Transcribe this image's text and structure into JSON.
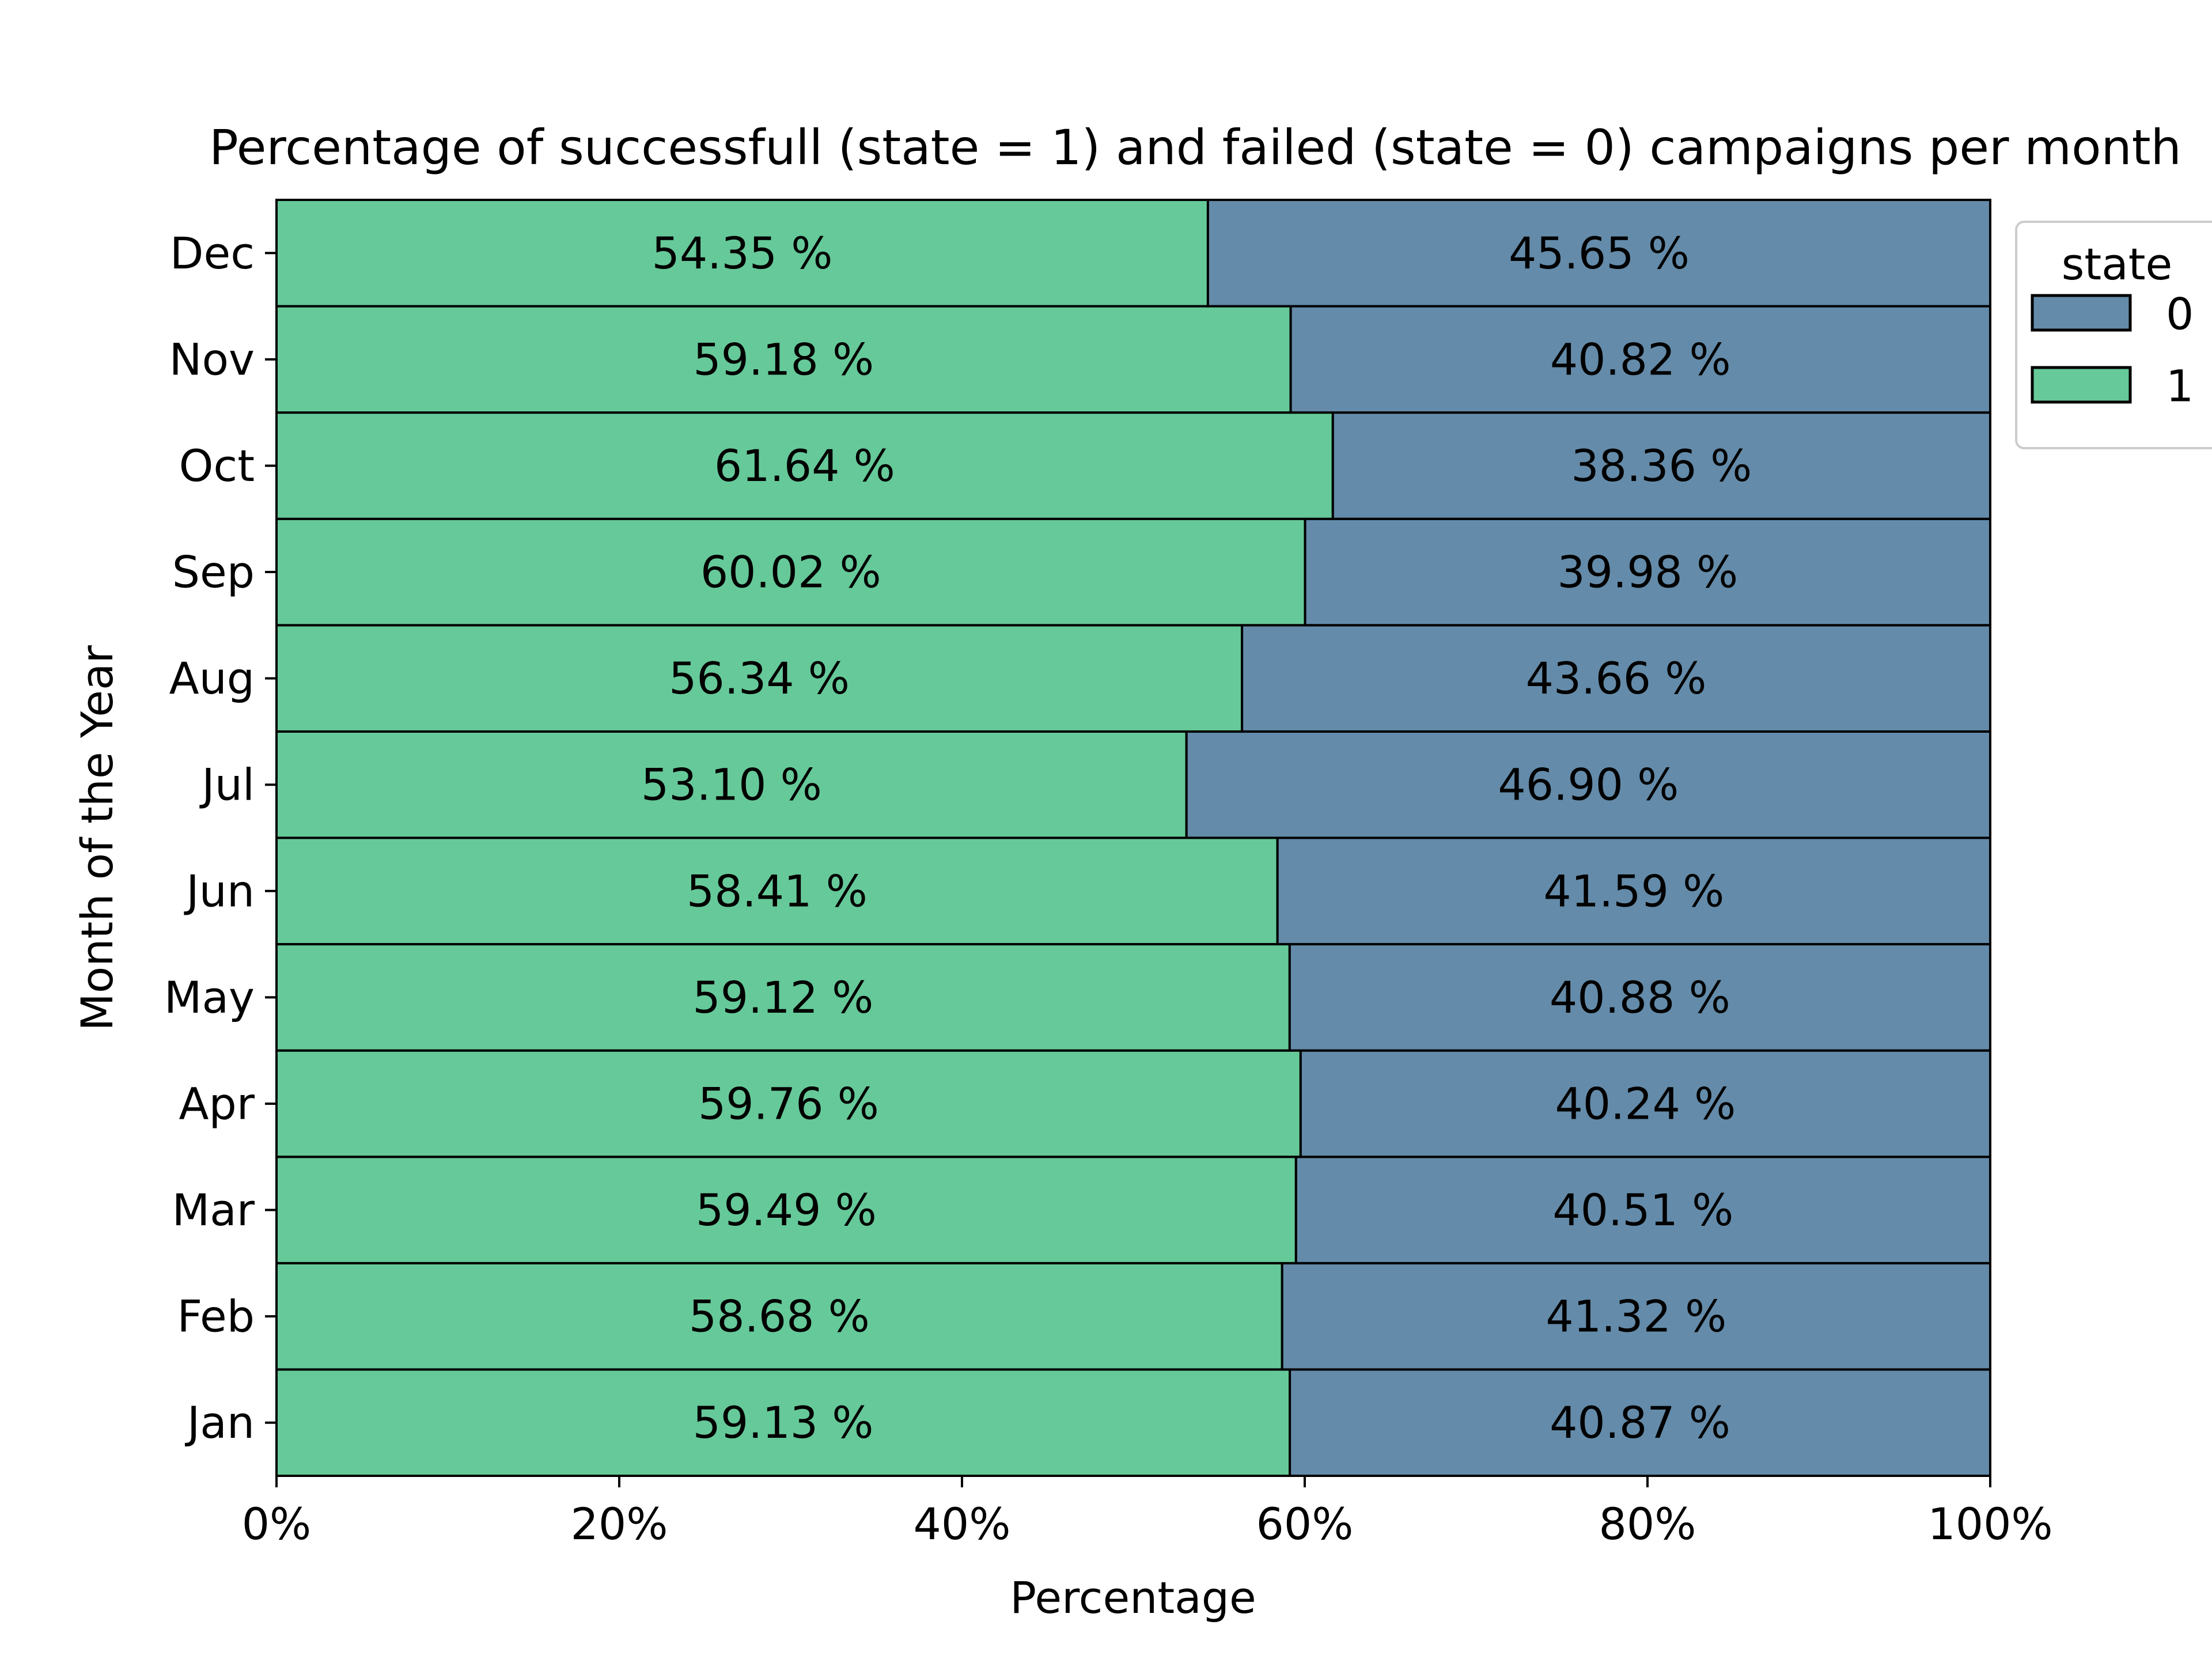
{
  "chart_data": {
    "type": "bar",
    "orientation": "horizontal",
    "stacked": true,
    "normalized_percent": true,
    "title": "Percentage of successfull (state = 1) and failed (state = 0) campaigns per month",
    "xlabel": "Percentage",
    "ylabel": "Month of the Year",
    "xlim": [
      0,
      100
    ],
    "xticks": [
      0,
      20,
      40,
      60,
      80,
      100
    ],
    "xtick_labels": [
      "0%",
      "20%",
      "40%",
      "60%",
      "80%",
      "100%"
    ],
    "categories": [
      "Jan",
      "Feb",
      "Mar",
      "Apr",
      "May",
      "Jun",
      "Jul",
      "Aug",
      "Sep",
      "Oct",
      "Nov",
      "Dec"
    ],
    "series": [
      {
        "name": "1",
        "color": "#66c999",
        "values": [
          59.13,
          58.68,
          59.49,
          59.76,
          59.12,
          58.41,
          53.1,
          56.34,
          60.02,
          61.64,
          59.18,
          54.35
        ],
        "labels": [
          "59.13 %",
          "58.68 %",
          "59.49 %",
          "59.76 %",
          "59.12 %",
          "58.41 %",
          "53.10 %",
          "56.34 %",
          "60.02 %",
          "61.64 %",
          "59.18 %",
          "54.35 %"
        ]
      },
      {
        "name": "0",
        "color": "#648ba9",
        "values": [
          40.87,
          41.32,
          40.51,
          40.24,
          40.88,
          41.59,
          46.9,
          43.66,
          39.98,
          38.36,
          40.82,
          45.65
        ],
        "labels": [
          "40.87 %",
          "41.32 %",
          "40.51 %",
          "40.24 %",
          "40.88 %",
          "41.59 %",
          "46.90 %",
          "43.66 %",
          "39.98 %",
          "38.36 %",
          "40.82 %",
          "45.65 %"
        ]
      }
    ],
    "legend": {
      "title": "state",
      "placement": "upper right, outside plot",
      "entries": [
        {
          "label": "0",
          "color": "#648ba9"
        },
        {
          "label": "1",
          "color": "#66c999"
        }
      ]
    },
    "grid": false
  }
}
